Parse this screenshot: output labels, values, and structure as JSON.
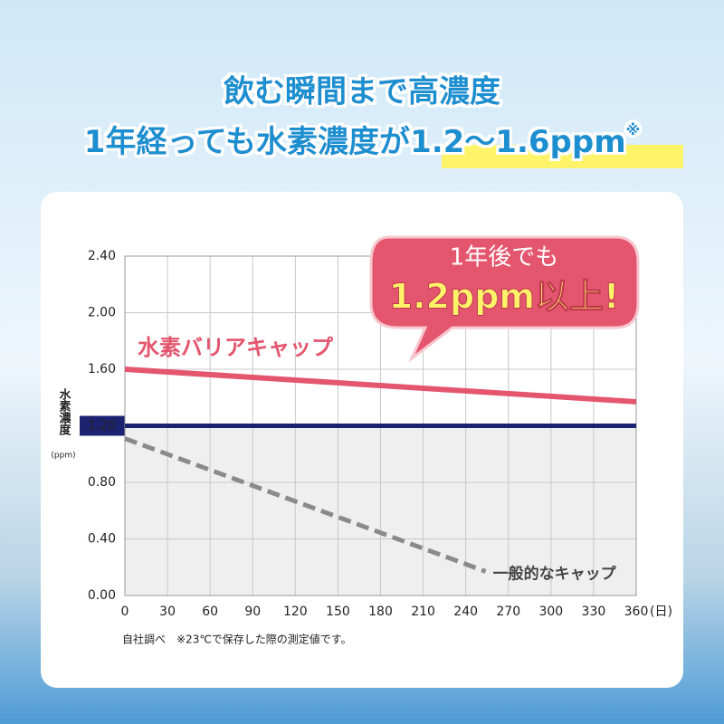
{
  "chart_data": {
    "type": "line",
    "title": "飲む瞬間まで高濃度",
    "subtitle": [
      "1年経っても水素濃度が",
      "1.2〜1.6ppm"
    ],
    "subtitle_mark": "※",
    "ylabel": "水素濃度",
    "yunit": "(ppm)",
    "xunit": "(日)",
    "annotation": [
      "1年後でも",
      "1.2ppm以上!"
    ],
    "note": "自社調べ　※23℃で保存した際の測定値です。",
    "xlim": [
      0,
      360
    ],
    "xticks": [
      0,
      30,
      60,
      90,
      120,
      150,
      180,
      210,
      240,
      270,
      300,
      330,
      360
    ],
    "ylim": [
      0,
      2.4
    ],
    "yticks": [
      {
        "value": 0,
        "label": "0.00"
      },
      {
        "value": 0.4,
        "label": "0.40"
      },
      {
        "value": 0.8,
        "label": "0.80"
      },
      {
        "value": 1.2,
        "label": "1.20"
      },
      {
        "value": 1.6,
        "label": "1.60"
      },
      {
        "value": 2.0,
        "label": "2.00"
      },
      {
        "value": 2.4,
        "label": "2.40"
      }
    ],
    "grid": true,
    "reference_line": {
      "value": 1.2,
      "color": "#1b2270"
    },
    "series": [
      {
        "name": "水素バリアキャップ",
        "color": "#e4566e",
        "x": [
          0,
          360
        ],
        "values": [
          1.6,
          1.37
        ]
      },
      {
        "name": "一般的なキャップ",
        "color": "#8a8a8a",
        "dash": true,
        "x": [
          0,
          254
        ],
        "values": [
          1.11,
          0.17
        ]
      }
    ]
  }
}
